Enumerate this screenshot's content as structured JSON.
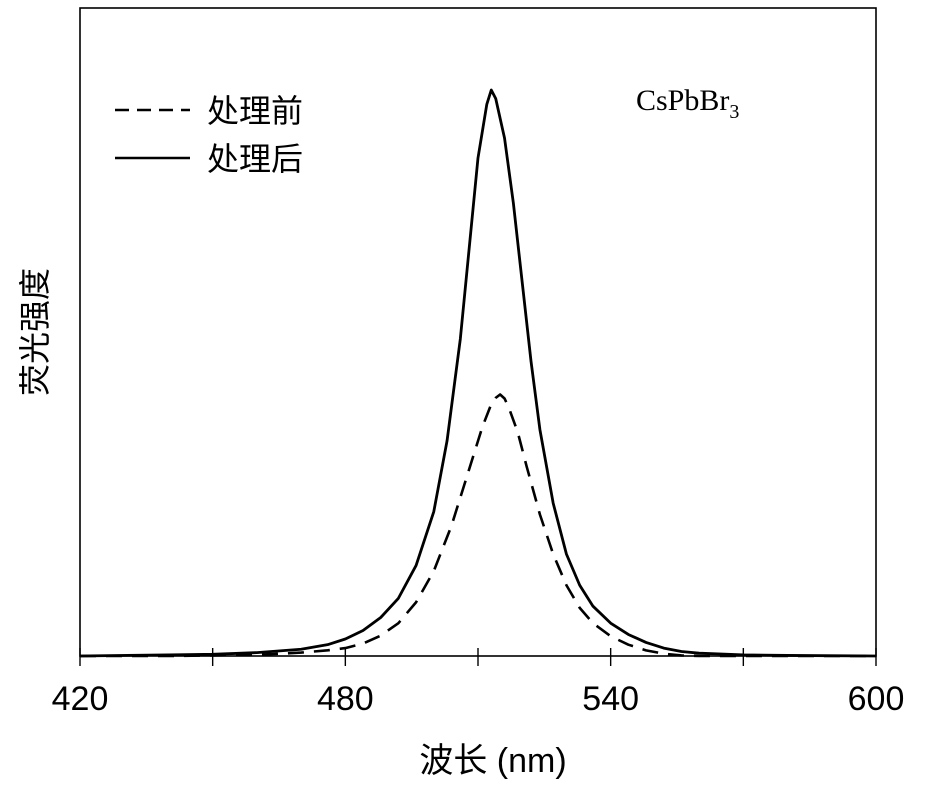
{
  "chart_data": {
    "type": "line",
    "ylabel": "荧光强度",
    "xlabel": "波长 (nm)",
    "annotation": {
      "text": "CsPbBr",
      "subscript": "3"
    },
    "xlim": [
      420,
      600
    ],
    "x_ticks": [
      420,
      450,
      480,
      510,
      540,
      570,
      600
    ],
    "x_tick_labels": [
      "420",
      "",
      "480",
      "",
      "540",
      "",
      "600"
    ],
    "ylim": [
      0,
      1.0
    ],
    "y_ticks_shown": false,
    "grid": false,
    "legend": {
      "placement": "top-left",
      "entries": [
        {
          "label": "处理前",
          "style": "dashed"
        },
        {
          "label": "处理后",
          "style": "solid"
        }
      ]
    },
    "series": [
      {
        "name": "处理前",
        "style": "dashed",
        "color": "#000000",
        "points": [
          [
            420,
            0.0
          ],
          [
            440,
            0.0
          ],
          [
            450,
            0.001
          ],
          [
            460,
            0.002
          ],
          [
            470,
            0.006
          ],
          [
            476,
            0.01
          ],
          [
            480,
            0.014
          ],
          [
            484,
            0.022
          ],
          [
            488,
            0.036
          ],
          [
            492,
            0.058
          ],
          [
            496,
            0.095
          ],
          [
            500,
            0.15
          ],
          [
            504,
            0.23
          ],
          [
            508,
            0.33
          ],
          [
            511,
            0.405
          ],
          [
            513,
            0.445
          ],
          [
            514,
            0.456
          ],
          [
            515,
            0.462
          ],
          [
            516,
            0.455
          ],
          [
            517,
            0.438
          ],
          [
            519,
            0.395
          ],
          [
            521,
            0.335
          ],
          [
            524,
            0.25
          ],
          [
            527,
            0.18
          ],
          [
            530,
            0.125
          ],
          [
            533,
            0.085
          ],
          [
            536,
            0.058
          ],
          [
            540,
            0.035
          ],
          [
            544,
            0.02
          ],
          [
            548,
            0.01
          ],
          [
            552,
            0.004
          ],
          [
            556,
            0.001
          ],
          [
            560,
            0.0
          ],
          [
            580,
            0.0
          ],
          [
            600,
            0.0
          ]
        ]
      },
      {
        "name": "处理后",
        "style": "solid",
        "color": "#000000",
        "points": [
          [
            420,
            0.0
          ],
          [
            440,
            0.002
          ],
          [
            450,
            0.003
          ],
          [
            460,
            0.006
          ],
          [
            470,
            0.012
          ],
          [
            476,
            0.02
          ],
          [
            480,
            0.03
          ],
          [
            484,
            0.045
          ],
          [
            488,
            0.068
          ],
          [
            492,
            0.102
          ],
          [
            496,
            0.16
          ],
          [
            500,
            0.255
          ],
          [
            503,
            0.38
          ],
          [
            506,
            0.56
          ],
          [
            508,
            0.72
          ],
          [
            510,
            0.88
          ],
          [
            512,
            0.975
          ],
          [
            513,
            1.0
          ],
          [
            514,
            0.985
          ],
          [
            516,
            0.915
          ],
          [
            518,
            0.8
          ],
          [
            520,
            0.66
          ],
          [
            522,
            0.52
          ],
          [
            524,
            0.4
          ],
          [
            527,
            0.27
          ],
          [
            530,
            0.18
          ],
          [
            533,
            0.125
          ],
          [
            536,
            0.088
          ],
          [
            540,
            0.058
          ],
          [
            544,
            0.038
          ],
          [
            548,
            0.024
          ],
          [
            552,
            0.014
          ],
          [
            556,
            0.008
          ],
          [
            560,
            0.005
          ],
          [
            570,
            0.002
          ],
          [
            580,
            0.001
          ],
          [
            600,
            0.0
          ]
        ]
      }
    ]
  }
}
